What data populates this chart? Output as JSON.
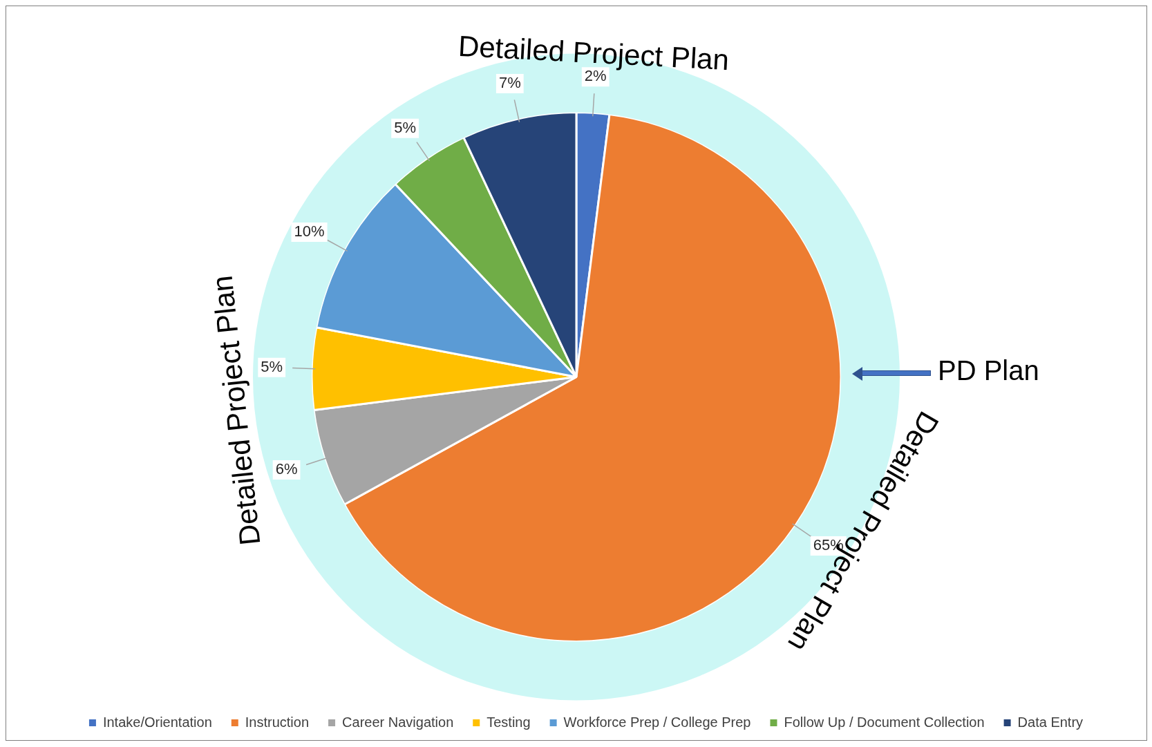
{
  "chart_data": {
    "type": "pie",
    "categories": [
      "Intake/Orientation",
      "Instruction",
      "Career Navigation",
      "Testing",
      "Workforce Prep / College Prep",
      "Follow Up / Document Collection",
      "Data Entry"
    ],
    "series": [
      {
        "values": [
          2,
          65,
          6,
          5,
          10,
          5,
          7
        ],
        "colors": [
          "#4472c4",
          "#ed7d31",
          "#a5a5a5",
          "#ffc000",
          "#5b9bd5",
          "#70ad47",
          "#264478"
        ],
        "value_labels": [
          "2%",
          "65%",
          "6%",
          "5%",
          "10%",
          "5%",
          "7%"
        ]
      },
      {
        "type": "donut",
        "color": "#ccf7f5",
        "values": [
          100,
          null,
          null,
          null,
          null,
          null,
          null
        ]
      }
    ],
    "legend": "bottom",
    "annotations": [
      "Detailed Project Plan",
      "Detailed Project Plan",
      "Detailed Project Plan",
      "PD Plan"
    ]
  }
}
